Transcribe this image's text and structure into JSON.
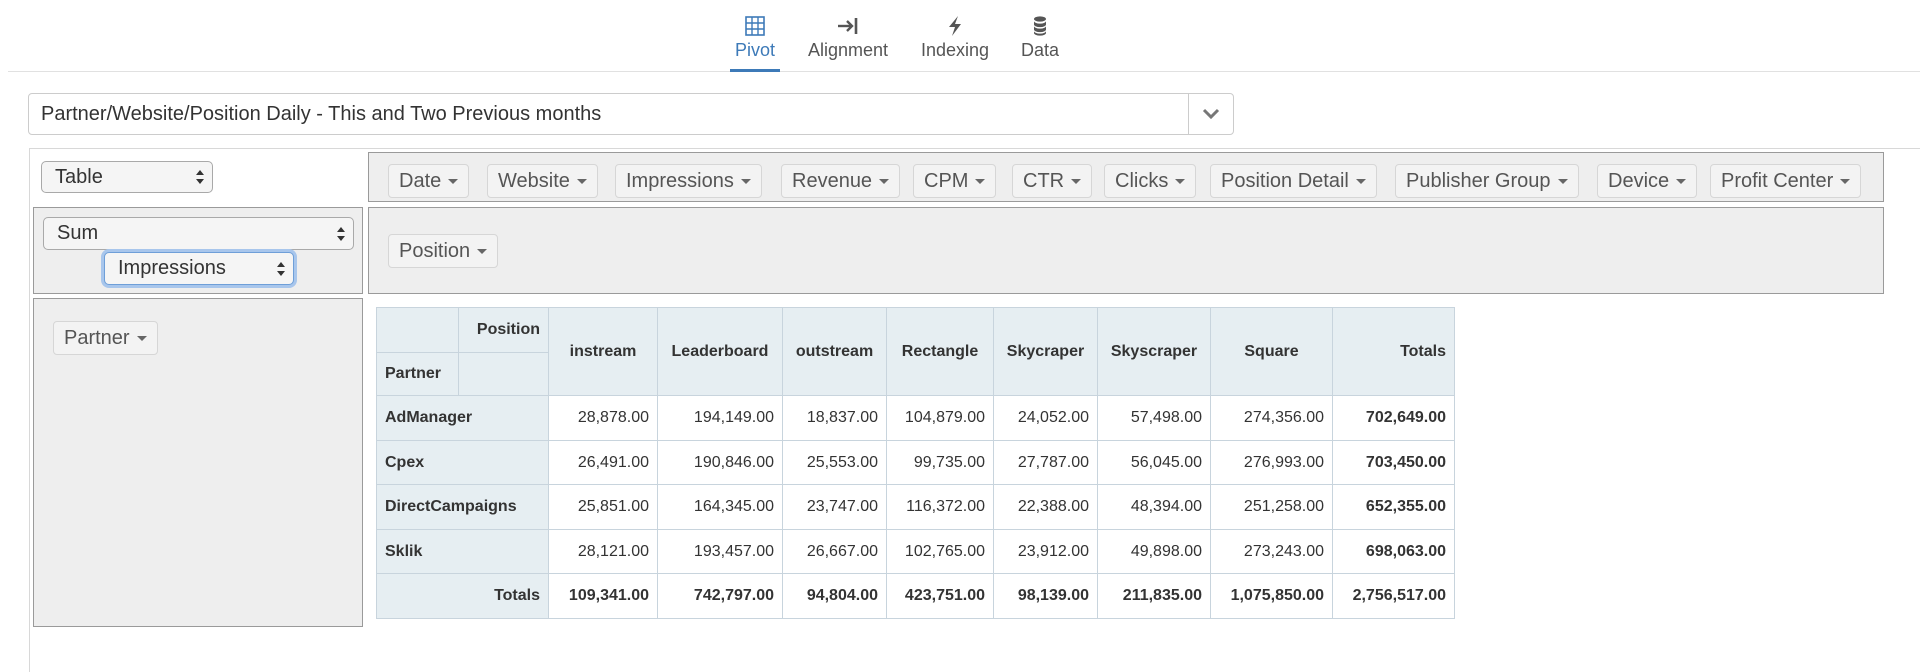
{
  "tabs": [
    {
      "label": "Pivot",
      "icon": "grid-icon",
      "active": true
    },
    {
      "label": "Alignment",
      "icon": "arrow-to-line-icon",
      "active": false
    },
    {
      "label": "Indexing",
      "icon": "bolt-icon",
      "active": false
    },
    {
      "label": "Data",
      "icon": "database-icon",
      "active": false
    }
  ],
  "report": {
    "selected": "Partner/Website/Position Daily - This and Two Previous months"
  },
  "renderer": {
    "selected": "Table"
  },
  "aggregator": {
    "selected": "Sum",
    "attribute": "Impressions"
  },
  "unused_attributes": [
    "Date",
    "Website",
    "Impressions",
    "Revenue",
    "CPM",
    "CTR",
    "Clicks",
    "Position Detail",
    "Publisher Group",
    "Device",
    "Profit Center"
  ],
  "col_attributes": [
    "Position"
  ],
  "row_attributes": [
    "Partner"
  ],
  "table": {
    "col_attr_label": "Position",
    "row_attr_label": "Partner",
    "columns": [
      "instream",
      "Leaderboard",
      "outstream",
      "Rectangle",
      "Skycraper",
      "Skyscraper",
      "Square"
    ],
    "totals_label": "Totals",
    "rows": [
      {
        "label": "AdManager",
        "values": [
          "28,878.00",
          "194,149.00",
          "18,837.00",
          "104,879.00",
          "24,052.00",
          "57,498.00",
          "274,356.00"
        ],
        "total": "702,649.00"
      },
      {
        "label": "Cpex",
        "values": [
          "26,491.00",
          "190,846.00",
          "25,553.00",
          "99,735.00",
          "27,787.00",
          "56,045.00",
          "276,993.00"
        ],
        "total": "703,450.00"
      },
      {
        "label": "DirectCampaigns",
        "values": [
          "25,851.00",
          "164,345.00",
          "23,747.00",
          "116,372.00",
          "22,388.00",
          "48,394.00",
          "251,258.00"
        ],
        "total": "652,355.00"
      },
      {
        "label": "Sklik",
        "values": [
          "28,121.00",
          "193,457.00",
          "26,667.00",
          "102,765.00",
          "23,912.00",
          "49,898.00",
          "273,243.00"
        ],
        "total": "698,063.00"
      }
    ],
    "column_totals": [
      "109,341.00",
      "742,797.00",
      "94,804.00",
      "423,751.00",
      "98,139.00",
      "211,835.00",
      "1,075,850.00"
    ],
    "grand_total": "2,756,517.00"
  },
  "colors": {
    "accent": "#3d7ab8",
    "panel_bg": "#eeeeee",
    "header_bg": "#e6eef2"
  }
}
